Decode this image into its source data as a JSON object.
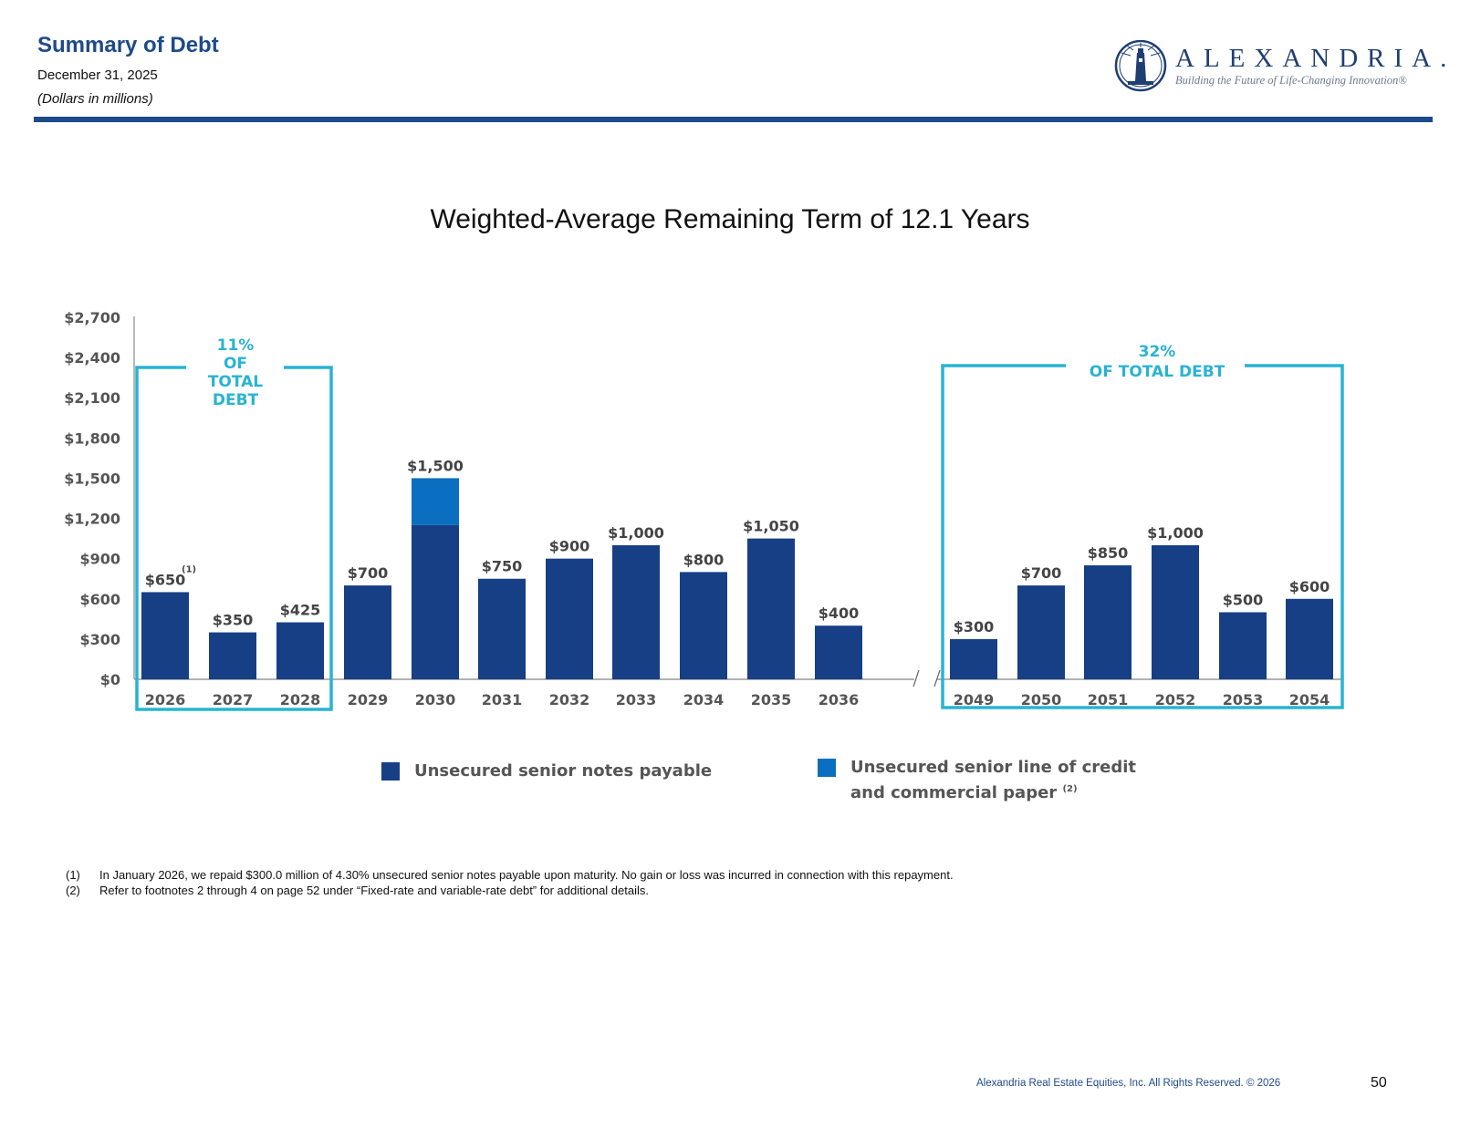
{
  "header": {
    "title": "Summary of Debt",
    "date": "December 31, 2025",
    "units": "(Dollars in millions)"
  },
  "logo": {
    "wordmark": "ALEXANDRIA.",
    "tagline": "Building the Future of Life-Changing Innovation®"
  },
  "colors": {
    "brand_blue": "#1d4a8a",
    "notes_payable": "#173f85",
    "line_of_credit": "#0a6fc0",
    "callout": "#29b3d3"
  },
  "chart_data": {
    "type": "bar",
    "title": "Weighted-Average Remaining Term of 12.1 Years",
    "xlabel": "",
    "ylabel": "",
    "ylim": [
      0,
      2700
    ],
    "y_ticks": [
      "$0",
      "$300",
      "$600",
      "$900",
      "$1,200",
      "$1,500",
      "$1,800",
      "$2,100",
      "$2,400",
      "$2,700"
    ],
    "y_tick_values": [
      0,
      300,
      600,
      900,
      1200,
      1500,
      1800,
      2100,
      2400,
      2700
    ],
    "categories": [
      "2026",
      "2027",
      "2028",
      "2029",
      "2030",
      "2031",
      "2032",
      "2033",
      "2034",
      "2035",
      "2036",
      "2049",
      "2050",
      "2051",
      "2052",
      "2053",
      "2054"
    ],
    "axis_break_after": "2036",
    "series": [
      {
        "name": "Unsecured senior notes payable",
        "values": [
          650,
          350,
          425,
          700,
          1150,
          750,
          900,
          1000,
          800,
          1050,
          400,
          300,
          700,
          850,
          1000,
          500,
          600
        ]
      },
      {
        "name": "Unsecured senior line of credit and commercial paper",
        "values": [
          0,
          0,
          0,
          0,
          350,
          0,
          0,
          0,
          0,
          0,
          0,
          0,
          0,
          0,
          0,
          0,
          0
        ]
      }
    ],
    "total_labels": [
      "$650",
      "$350",
      "$425",
      "$700",
      "$1,500",
      "$750",
      "$900",
      "$1,000",
      "$800",
      "$1,050",
      "$400",
      "$300",
      "$700",
      "$850",
      "$1,000",
      "$500",
      "$600"
    ],
    "label_footnotes": {
      "2026": "(1)"
    },
    "callouts": [
      {
        "lines": [
          "11%",
          "OF",
          "TOTAL",
          "DEBT"
        ],
        "from": "2026",
        "to": "2028"
      },
      {
        "lines": [
          "32%",
          "OF TOTAL DEBT"
        ],
        "from": "2049",
        "to": "2054"
      }
    ],
    "legend": [
      {
        "label_lines": [
          "Unsecured senior notes payable"
        ],
        "footnote": ""
      },
      {
        "label_lines": [
          "Unsecured senior line of credit",
          "and commercial paper"
        ],
        "footnote": "(2)"
      }
    ]
  },
  "footnotes": [
    {
      "num": "(1)",
      "text": "In January 2026, we repaid $300.0 million of 4.30% unsecured senior notes payable upon maturity. No gain or loss was incurred in connection with this repayment."
    },
    {
      "num": "(2)",
      "text": "Refer to footnotes 2 through 4 on page 52 under “Fixed-rate and variable-rate debt” for additional details."
    }
  ],
  "footer": {
    "copyright": "Alexandria Real Estate Equities, Inc. All Rights Reserved. © 2026",
    "page_number": "50"
  }
}
